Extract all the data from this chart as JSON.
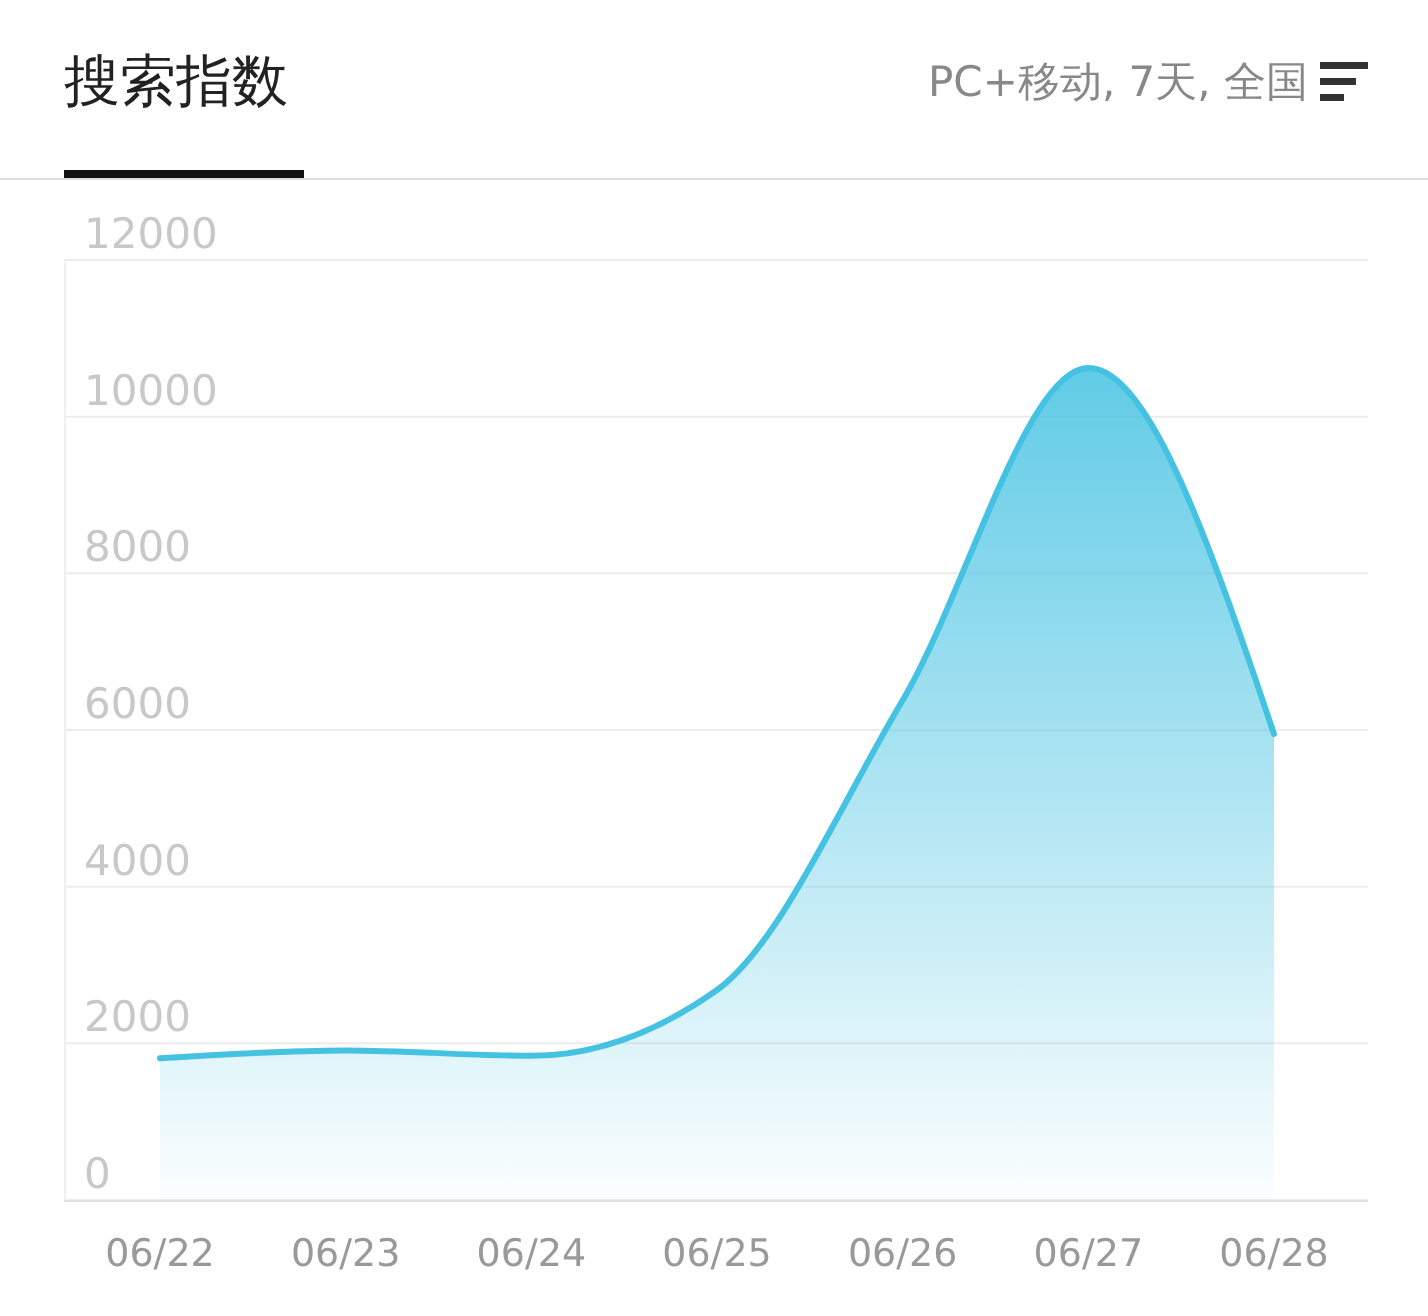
{
  "chart_data": {
    "type": "area",
    "title": "搜索指数",
    "subtitle": "PC+移动, 7天, 全国",
    "categories": [
      "06/22",
      "06/23",
      "06/24",
      "06/25",
      "06/26",
      "06/27",
      "06/28"
    ],
    "series": [
      {
        "color": "#45c2e2",
        "values": [
          1810,
          1910,
          1840,
          2680,
          6380,
          10620,
          5950
        ]
      }
    ],
    "ylim": [
      0,
      12000
    ],
    "yticks": [
      0,
      2000,
      4000,
      6000,
      8000,
      10000,
      12000
    ],
    "grid": "y"
  }
}
